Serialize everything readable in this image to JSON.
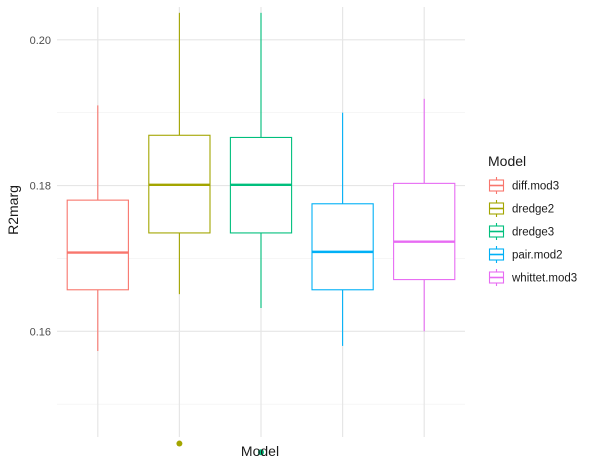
{
  "chart_data": {
    "type": "boxplot",
    "xlabel": "Model",
    "ylabel": "R2marg",
    "ylim": [
      0.1455,
      0.2045
    ],
    "yticks": [
      0.16,
      0.18,
      0.2
    ],
    "ytick_labels": [
      "0.16",
      "0.18",
      "0.20"
    ],
    "grid": true,
    "legend": {
      "title": "Model",
      "placement": "right",
      "entries": [
        "diff.mod3",
        "dredge2",
        "dredge3",
        "pair.mod2",
        "whittet.mod3"
      ]
    },
    "series": [
      {
        "name": "diff.mod3",
        "color": "#F8766D",
        "whisker_low": 0.1573,
        "q1": 0.1657,
        "median": 0.1708,
        "q3": 0.178,
        "whisker_high": 0.191,
        "outliers": []
      },
      {
        "name": "dredge2",
        "color": "#A3A500",
        "whisker_low": 0.1651,
        "q1": 0.1735,
        "median": 0.1801,
        "q3": 0.1869,
        "whisker_high": 0.2037,
        "outliers": [
          0.1446
        ]
      },
      {
        "name": "dredge3",
        "color": "#00BF7D",
        "whisker_low": 0.1632,
        "q1": 0.1735,
        "median": 0.1801,
        "q3": 0.1866,
        "whisker_high": 0.2037,
        "outliers": [
          0.1434
        ]
      },
      {
        "name": "pair.mod2",
        "color": "#00B0F6",
        "whisker_low": 0.158,
        "q1": 0.1657,
        "median": 0.1709,
        "q3": 0.1775,
        "whisker_high": 0.19,
        "outliers": []
      },
      {
        "name": "whittet.mod3",
        "color": "#E76BF3",
        "whisker_low": 0.16,
        "q1": 0.1671,
        "median": 0.1723,
        "q3": 0.1803,
        "whisker_high": 0.1919,
        "outliers": []
      }
    ]
  }
}
